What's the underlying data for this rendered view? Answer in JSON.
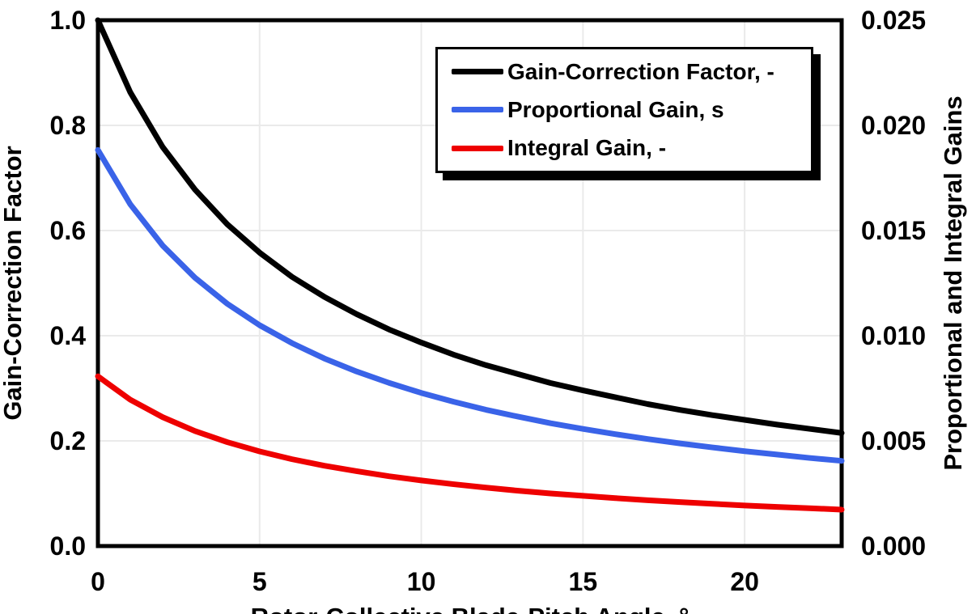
{
  "chart_data": {
    "type": "line",
    "title": "",
    "grid": true,
    "legend_position": "top-center-inside",
    "background": "#ffffff",
    "frame_color": "#000000",
    "grid_color": "#eaeaea",
    "x_axis": {
      "label": "Rotor-Collective Blade-Pitch Angle, °",
      "min": 0,
      "max": 23,
      "tick_values": [
        0,
        5,
        10,
        15,
        20
      ],
      "tick_labels": [
        "0",
        "5",
        "10",
        "15",
        "20"
      ],
      "note": "axis title clipped by bottom edge of screenshot"
    },
    "left_axis": {
      "label": "Gain-Correction Factor",
      "min": 0.0,
      "max": 1.0,
      "tick_values": [
        1.0,
        0.8,
        0.6,
        0.4,
        0.2,
        0.0
      ],
      "tick_labels": [
        "1.0",
        "0.8",
        "0.6",
        "0.4",
        "0.2",
        "0.0"
      ],
      "gridline_values": [
        0.2,
        0.4,
        0.6,
        0.8
      ]
    },
    "right_axis": {
      "label": "Proportional and Integral Gains",
      "min": 0.0,
      "max": 0.025,
      "tick_values": [
        0.025,
        0.02,
        0.015,
        0.01,
        0.005,
        0.0
      ],
      "tick_labels": [
        "0.025",
        "0.020",
        "0.015",
        "0.010",
        "0.005",
        "0.000"
      ]
    },
    "x": [
      0,
      1,
      2,
      3,
      4,
      5,
      6,
      7,
      8,
      9,
      10,
      11,
      12,
      13,
      14,
      15,
      16,
      17,
      18,
      19,
      20,
      21,
      22,
      23
    ],
    "series": [
      {
        "name": "Gain-Correction Factor, -",
        "color": "#000000",
        "axis": "left",
        "values": [
          1.0,
          0.863,
          0.759,
          0.678,
          0.612,
          0.558,
          0.512,
          0.474,
          0.441,
          0.412,
          0.387,
          0.364,
          0.344,
          0.327,
          0.31,
          0.296,
          0.283,
          0.27,
          0.259,
          0.249,
          0.24,
          0.231,
          0.223,
          0.215
        ]
      },
      {
        "name": "Proportional Gain, s",
        "color": "#3a63e8",
        "axis": "right",
        "values": [
          0.01883,
          0.01625,
          0.01429,
          0.01276,
          0.01152,
          0.0105,
          0.00965,
          0.00892,
          0.0083,
          0.00776,
          0.00728,
          0.00686,
          0.00648,
          0.00615,
          0.00584,
          0.00557,
          0.00532,
          0.00509,
          0.00488,
          0.00469,
          0.00451,
          0.00435,
          0.00419,
          0.00405
        ]
      },
      {
        "name": "Integral Gain, -",
        "color": "#ee0000",
        "axis": "right",
        "values": [
          0.00807,
          0.00696,
          0.00613,
          0.00547,
          0.00494,
          0.0045,
          0.00413,
          0.00382,
          0.00356,
          0.00332,
          0.00312,
          0.00294,
          0.00278,
          0.00263,
          0.0025,
          0.00239,
          0.00228,
          0.00218,
          0.00209,
          0.00201,
          0.00193,
          0.00186,
          0.0018,
          0.00173
        ]
      }
    ]
  }
}
